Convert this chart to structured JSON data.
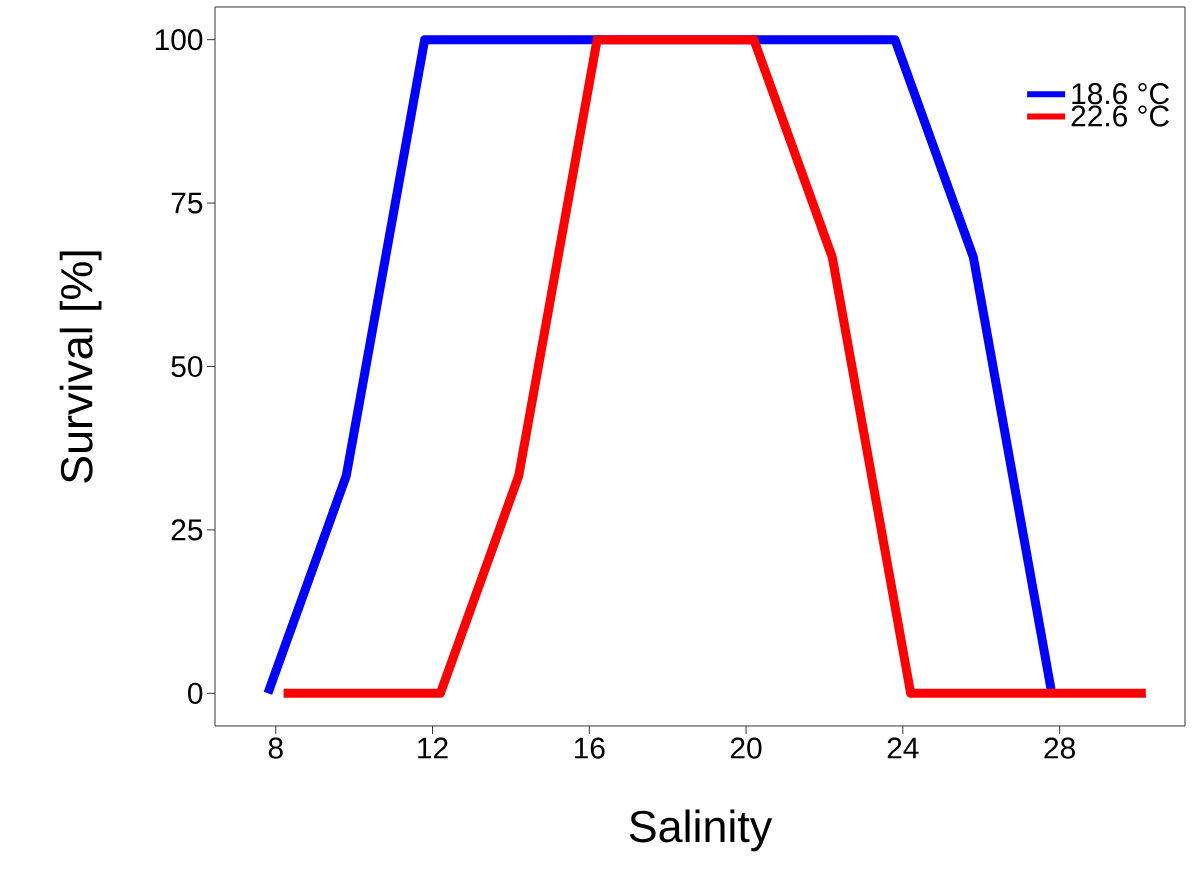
{
  "chart_data": {
    "type": "line",
    "xlabel": "Salinity",
    "ylabel": "Survival [%]",
    "xlim": [
      6.45,
      31.2
    ],
    "ylim": [
      -5,
      105
    ],
    "xticks": [
      8,
      12,
      16,
      20,
      24,
      28
    ],
    "yticks": [
      0,
      25,
      50,
      75,
      100
    ],
    "grid": false,
    "legend": "top right",
    "marker": "none",
    "line_style": "solid",
    "series": [
      {
        "name": "18.6 °C",
        "color": "#0000ff",
        "x": [
          7.8,
          9.8,
          11.8,
          23.8,
          25.8,
          27.8
        ],
        "values": [
          0,
          33.3,
          100,
          100,
          66.7,
          0
        ]
      },
      {
        "name": "22.6 °C",
        "color": "#ff0000",
        "x": [
          8.2,
          12.2,
          14.2,
          16.2,
          20.2,
          22.2,
          24.2,
          30.2
        ],
        "values": [
          0,
          0,
          33.3,
          100,
          100,
          66.7,
          0,
          0
        ]
      }
    ]
  }
}
